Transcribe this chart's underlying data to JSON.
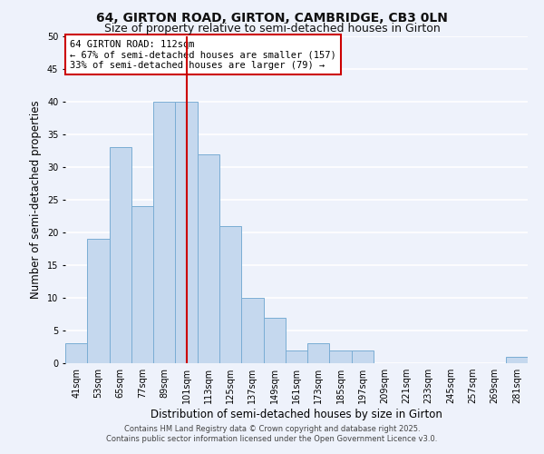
{
  "title": "64, GIRTON ROAD, GIRTON, CAMBRIDGE, CB3 0LN",
  "subtitle": "Size of property relative to semi-detached houses in Girton",
  "xlabel": "Distribution of semi-detached houses by size in Girton",
  "ylabel": "Number of semi-detached properties",
  "bins": [
    41,
    53,
    65,
    77,
    89,
    101,
    113,
    125,
    137,
    149,
    161,
    173,
    185,
    197,
    209,
    221,
    233,
    245,
    257,
    269,
    281
  ],
  "values": [
    3,
    19,
    33,
    24,
    40,
    40,
    32,
    21,
    10,
    7,
    2,
    3,
    2,
    2,
    0,
    0,
    0,
    0,
    0,
    0,
    1
  ],
  "bar_color": "#c5d8ee",
  "bar_edge_color": "#7aadd4",
  "background_color": "#eef2fb",
  "grid_color": "#ffffff",
  "vline_x": 113,
  "vline_color": "#cc0000",
  "ylim": [
    0,
    50
  ],
  "yticks": [
    0,
    5,
    10,
    15,
    20,
    25,
    30,
    35,
    40,
    45,
    50
  ],
  "annotation_title": "64 GIRTON ROAD: 112sqm",
  "annotation_line1": "← 67% of semi-detached houses are smaller (157)",
  "annotation_line2": "33% of semi-detached houses are larger (79) →",
  "footer1": "Contains HM Land Registry data © Crown copyright and database right 2025.",
  "footer2": "Contains public sector information licensed under the Open Government Licence v3.0.",
  "bin_width": 12,
  "title_fontsize": 10,
  "subtitle_fontsize": 9,
  "annotation_fontsize": 7.5,
  "axis_label_fontsize": 8.5,
  "tick_fontsize": 7,
  "footer_fontsize": 6
}
